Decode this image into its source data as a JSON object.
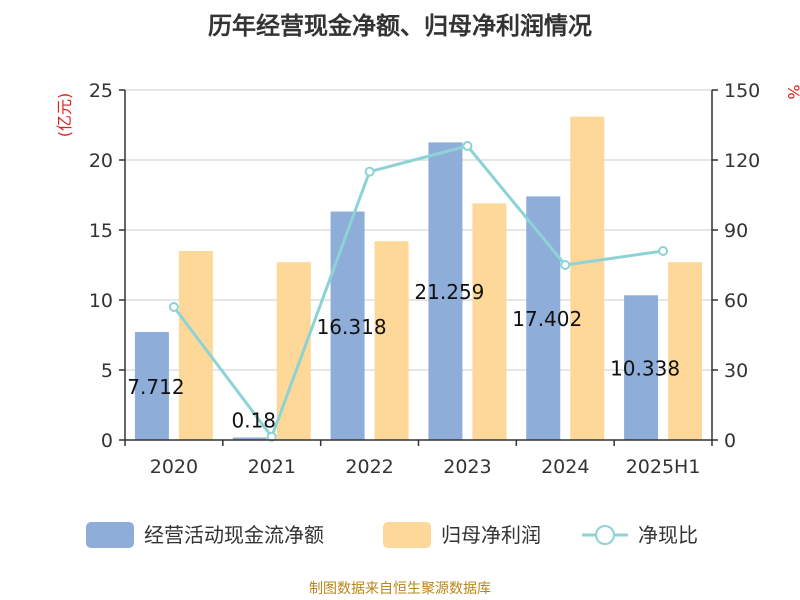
{
  "chart_data": {
    "type": "bar+line",
    "title": "历年经营现金净额、归母净利润情况",
    "categories": [
      "2020",
      "2021",
      "2022",
      "2023",
      "2024",
      "2025H1"
    ],
    "y_left": {
      "unit": "(亿元)",
      "range": [
        0,
        25
      ],
      "ticks": [
        "0",
        "5",
        "10",
        "15",
        "20",
        "25"
      ]
    },
    "y_right": {
      "unit": "%",
      "range": [
        0,
        150
      ],
      "ticks": [
        "0",
        "30",
        "60",
        "90",
        "120",
        "150"
      ]
    },
    "series": [
      {
        "name": "经营活动现金流净额",
        "type": "bar",
        "axis": "left",
        "color": "#8eadd9",
        "values": [
          7.712,
          0.18,
          16.318,
          21.259,
          17.402,
          10.338
        ],
        "labels": [
          "7.712",
          "0.18",
          "16.318",
          "21.259",
          "17.402",
          "10.338"
        ]
      },
      {
        "name": "归母净利润",
        "type": "bar",
        "axis": "left",
        "color": "#fdd899",
        "values": [
          13.5,
          12.7,
          14.2,
          16.9,
          23.1,
          12.7
        ]
      },
      {
        "name": "净现比",
        "type": "line",
        "axis": "right",
        "color": "#8dd3d5",
        "values": [
          57,
          1.4,
          115,
          126,
          75,
          81
        ]
      }
    ],
    "grid": true,
    "legend_position": "bottom"
  },
  "footer": {
    "source": "制图数据来自恒生聚源数据库"
  }
}
